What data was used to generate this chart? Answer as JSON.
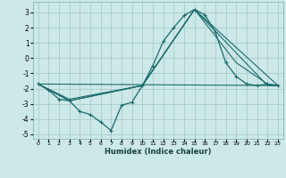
{
  "xlabel": "Humidex (Indice chaleur)",
  "background_color": "#cce8e8",
  "grid_color": "#aacccc",
  "line_color": "#1a6b6b",
  "xlim": [
    -0.5,
    23.5
  ],
  "ylim": [
    -5.3,
    3.7
  ],
  "xticks": [
    0,
    1,
    2,
    3,
    4,
    5,
    6,
    7,
    8,
    9,
    10,
    11,
    12,
    13,
    14,
    15,
    16,
    17,
    18,
    19,
    20,
    21,
    22,
    23
  ],
  "yticks": [
    -5,
    -4,
    -3,
    -2,
    -1,
    0,
    1,
    2,
    3
  ],
  "line_main": {
    "x": [
      0,
      1,
      2,
      3,
      4,
      5,
      6,
      7,
      8,
      9,
      10,
      11,
      12,
      13,
      14,
      15,
      16,
      17,
      18,
      19,
      20,
      21,
      22,
      23
    ],
    "y": [
      -1.7,
      -2.1,
      -2.7,
      -2.8,
      -3.5,
      -3.7,
      -4.2,
      -4.75,
      -3.1,
      -2.9,
      -1.8,
      -0.5,
      1.1,
      2.0,
      2.8,
      3.2,
      2.85,
      1.7,
      -0.3,
      -1.2,
      -1.7,
      -1.8,
      -1.7,
      -1.8
    ]
  },
  "lines_extra": [
    {
      "x": [
        0,
        3,
        10,
        15,
        19,
        22,
        23
      ],
      "y": [
        -1.7,
        -2.7,
        -1.8,
        3.2,
        -0.3,
        -1.7,
        -1.8
      ]
    },
    {
      "x": [
        0,
        3,
        10,
        15,
        22,
        23
      ],
      "y": [
        -1.7,
        -2.8,
        -1.8,
        3.2,
        -1.8,
        -1.8
      ]
    },
    {
      "x": [
        0,
        3,
        10,
        15,
        23
      ],
      "y": [
        -1.7,
        -2.8,
        -1.8,
        3.2,
        -1.8
      ]
    },
    {
      "x": [
        0,
        23
      ],
      "y": [
        -1.7,
        -1.8
      ]
    }
  ]
}
